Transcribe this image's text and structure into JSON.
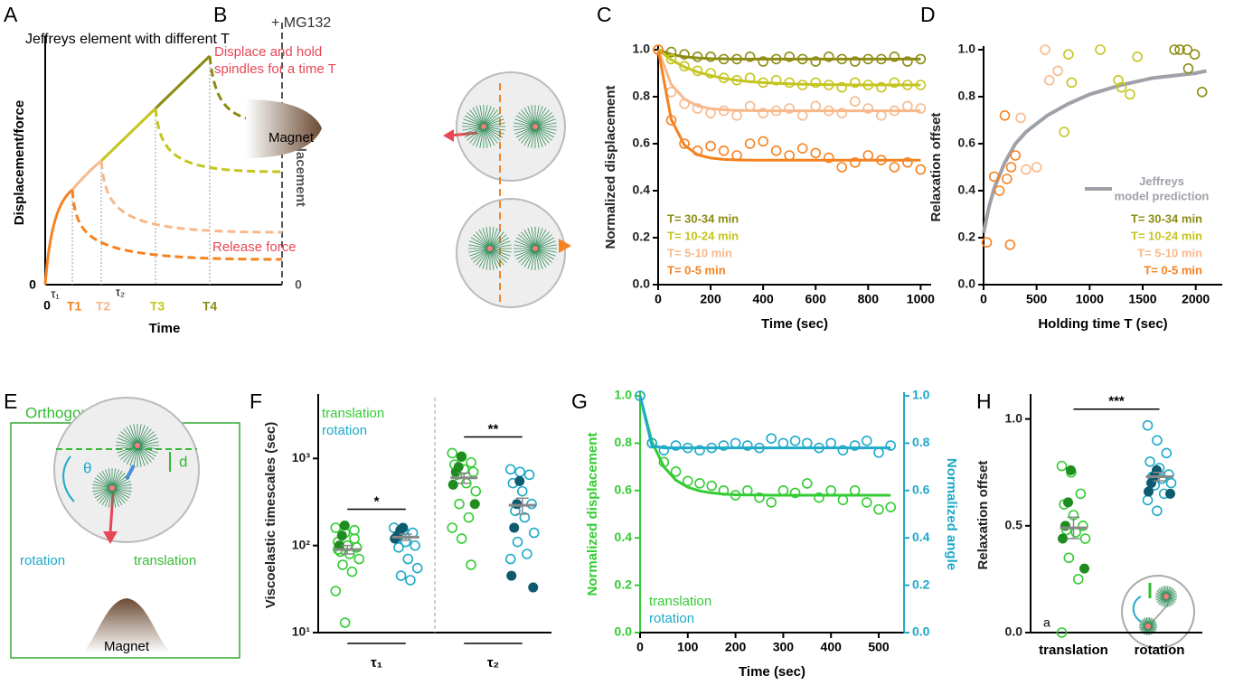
{
  "panel_labels": [
    "A",
    "B",
    "C",
    "D",
    "E",
    "F",
    "G",
    "H"
  ],
  "panel_a": {
    "title": "Jeffreys element with different T",
    "y_label": "Displacement/force",
    "y2_label": "Displacement",
    "x_label": "Time",
    "y_zero": "0",
    "x_zero": "0",
    "y2_zero": "0",
    "tau1": "τ₁",
    "tau2": "τ₂",
    "times": [
      "T1",
      "T2",
      "T3",
      "T4"
    ]
  },
  "panel_b": {
    "treatment": "+ MG132",
    "step1": "Displace and hold spindles for a time T",
    "magnet": "Magnet",
    "step2": "Release force"
  },
  "panel_e": {
    "title": "Orthogonal",
    "angle": "θ",
    "distance": "d",
    "rotation": "rotation",
    "translation": "translation",
    "magnet": "Magnet"
  },
  "chart_data": [
    {
      "type": "scatter",
      "x_label": "Time (sec)",
      "y_label": "Normalized displacement",
      "legend": "lower left",
      "x": [
        0,
        50,
        100,
        150,
        200,
        250,
        300,
        350,
        400,
        450,
        500,
        550,
        600,
        650,
        700,
        750,
        800,
        850,
        900,
        950,
        1000
      ],
      "xlim": [
        0,
        1040
      ],
      "ylim": [
        0,
        1
      ],
      "xticks": [
        0,
        200,
        400,
        600,
        800,
        1000
      ],
      "yticks": [
        {
          "value": 0,
          "label": "0.0"
        },
        {
          "value": 0.2,
          "label": "0.2"
        },
        {
          "value": 0.4,
          "label": "0.4"
        },
        {
          "value": 0.6,
          "label": "0.6"
        },
        {
          "value": 0.8,
          "label": "0.8"
        },
        {
          "value": 1,
          "label": "1.0"
        }
      ],
      "series": [
        {
          "name": "T= 30-34 min",
          "color": "#8c8c14",
          "values": [
            1.0,
            0.99,
            0.98,
            0.97,
            0.97,
            0.96,
            0.96,
            0.97,
            0.95,
            0.96,
            0.97,
            0.96,
            0.95,
            0.97,
            0.96,
            0.95,
            0.96,
            0.96,
            0.97,
            0.95,
            0.96
          ],
          "fit": [
            1.0,
            0.98,
            0.97,
            0.965,
            0.962,
            0.961,
            0.96,
            0.96,
            0.96,
            0.96,
            0.96,
            0.96,
            0.96,
            0.96,
            0.96,
            0.96,
            0.96,
            0.96,
            0.96,
            0.96,
            0.96
          ]
        },
        {
          "name": "T= 10-24 min",
          "color": "#c5c520",
          "values": [
            1.0,
            0.96,
            0.93,
            0.91,
            0.9,
            0.88,
            0.87,
            0.88,
            0.86,
            0.87,
            0.86,
            0.85,
            0.86,
            0.85,
            0.84,
            0.86,
            0.85,
            0.84,
            0.86,
            0.85,
            0.85
          ],
          "fit": [
            1.0,
            0.957,
            0.927,
            0.905,
            0.89,
            0.878,
            0.87,
            0.864,
            0.86,
            0.857,
            0.855,
            0.853,
            0.852,
            0.851,
            0.851,
            0.85,
            0.85,
            0.85,
            0.85,
            0.85,
            0.85
          ]
        },
        {
          "name": "T= 5-10 min",
          "color": "#f7b98b",
          "values": [
            1.0,
            0.82,
            0.77,
            0.75,
            0.73,
            0.74,
            0.72,
            0.76,
            0.73,
            0.74,
            0.75,
            0.72,
            0.76,
            0.74,
            0.73,
            0.78,
            0.75,
            0.72,
            0.74,
            0.76,
            0.75
          ],
          "fit": [
            1.0,
            0.852,
            0.79,
            0.761,
            0.749,
            0.744,
            0.742,
            0.741,
            0.74,
            0.74,
            0.74,
            0.74,
            0.74,
            0.74,
            0.74,
            0.74,
            0.74,
            0.74,
            0.74,
            0.74,
            0.74
          ]
        },
        {
          "name": "T= 0-5 min",
          "color": "#f58220",
          "values": [
            1.0,
            0.7,
            0.6,
            0.57,
            0.59,
            0.57,
            0.55,
            0.6,
            0.61,
            0.57,
            0.55,
            0.58,
            0.56,
            0.54,
            0.5,
            0.52,
            0.55,
            0.53,
            0.5,
            0.52,
            0.49
          ],
          "fit": [
            1.0,
            0.703,
            0.594,
            0.553,
            0.539,
            0.533,
            0.531,
            0.53,
            0.53,
            0.53,
            0.53,
            0.53,
            0.53,
            0.53,
            0.53,
            0.53,
            0.53,
            0.53,
            0.53,
            0.53,
            0.53
          ]
        }
      ]
    },
    {
      "type": "scatter",
      "x_label": "Holding time T (sec)",
      "y_label": "Relaxation offset",
      "legend": "lower right",
      "xlim": [
        0,
        2250
      ],
      "ylim": [
        0,
        1
      ],
      "xticks": [
        0,
        500,
        1000,
        1500,
        2000
      ],
      "yticks": [
        {
          "value": 0,
          "label": "0.0"
        },
        {
          "value": 0.2,
          "label": "0.2"
        },
        {
          "value": 0.4,
          "label": "0.4"
        },
        {
          "value": 0.6,
          "label": "0.6"
        },
        {
          "value": 0.8,
          "label": "0.8"
        },
        {
          "value": 1,
          "label": "1.0"
        }
      ],
      "series": [
        {
          "name": "Jeffreys model prediction",
          "color": "#a0a0a8",
          "style": "line",
          "x": [
            0,
            50,
            100,
            200,
            300,
            400,
            600,
            800,
            1000,
            1300,
            1600,
            2000,
            2100
          ],
          "values": [
            0.22,
            0.33,
            0.41,
            0.52,
            0.6,
            0.65,
            0.72,
            0.77,
            0.81,
            0.85,
            0.88,
            0.9,
            0.91
          ]
        },
        {
          "name": "T= 30-34 min",
          "color": "#8c8c14",
          "x": [
            1800,
            1850,
            1920,
            1930,
            1990,
            2060
          ],
          "values": [
            1.0,
            1.0,
            1.0,
            0.92,
            0.98,
            0.82
          ]
        },
        {
          "name": "T= 10-24 min",
          "color": "#c5c520",
          "x": [
            760,
            800,
            830,
            1100,
            1270,
            1300,
            1380,
            1450
          ],
          "values": [
            0.65,
            0.98,
            0.86,
            1.0,
            0.87,
            0.84,
            0.81,
            0.97
          ]
        },
        {
          "name": "T= 5-10 min",
          "color": "#f7b98b",
          "x": [
            350,
            400,
            500,
            580,
            620,
            700
          ],
          "values": [
            0.71,
            0.49,
            0.5,
            1.0,
            0.87,
            0.91
          ]
        },
        {
          "name": "T= 0-5 min",
          "color": "#f58220",
          "x": [
            30,
            100,
            150,
            200,
            220,
            250,
            260,
            300
          ],
          "values": [
            0.18,
            0.46,
            0.4,
            0.72,
            0.45,
            0.17,
            0.5,
            0.55
          ]
        }
      ]
    },
    {
      "type": "strip",
      "log": true,
      "y_label": "Viscoelastic timescales (sec)",
      "legend": "upper left",
      "ylim": [
        10,
        5000
      ],
      "yticks": [
        {
          "value": 10,
          "label": "10¹"
        },
        {
          "value": 100,
          "label": "10²"
        },
        {
          "value": 1000,
          "label": "10³"
        }
      ],
      "categories": [
        "τ₁",
        "τ₂"
      ],
      "significance": [
        "*",
        "**"
      ],
      "series": [
        {
          "name": "translation",
          "color": "#33cc33",
          "filled_color": "#1f8c1f",
          "values": [
            [
              160,
              140,
              120,
              110,
              100,
              95,
              85,
              80,
              70,
              60,
              50,
              30,
              13,
              150,
              90
            ],
            [
              1150,
              1050,
              900,
              850,
              750,
              700,
              650,
              520,
              420,
              300,
              210,
              160,
              120,
              60
            ]
          ],
          "filled": [
            [
              170,
              130,
              100
            ],
            [
              1050,
              800,
              700,
              500,
              300
            ]
          ],
          "mean": [
            90,
            600
          ],
          "sem": [
            10,
            80
          ]
        },
        {
          "name": "rotation",
          "color": "#1eaac8",
          "filled_color": "#0e5a6e",
          "values": [
            [
              160,
              150,
              140,
              120,
              110,
              100,
              95,
              70,
              55,
              45,
              40
            ],
            [
              750,
              700,
              650,
              520,
              420,
              300,
              250,
              210,
              140,
              110,
              80,
              70
            ]
          ],
          "filled": [
            [
              160,
              150,
              130,
              120
            ],
            [
              550,
              300,
              160,
              45,
              33
            ]
          ],
          "mean": [
            125,
            290
          ],
          "sem": [
            10,
            60
          ]
        }
      ]
    },
    {
      "type": "scatter",
      "x_label": "Time (sec)",
      "y_label": "Normalized displacement",
      "y2_label": "Normalized angle",
      "legend": "lower left",
      "x": [
        0,
        25,
        50,
        75,
        100,
        125,
        150,
        175,
        200,
        225,
        250,
        275,
        300,
        325,
        350,
        375,
        400,
        425,
        450,
        475,
        500,
        525
      ],
      "xlim": [
        0,
        553
      ],
      "ylim": [
        0,
        1
      ],
      "y2lim": [
        0,
        1
      ],
      "xticks": [
        0,
        100,
        200,
        300,
        400,
        500
      ],
      "yticks": [
        {
          "value": 0,
          "label": "0.0"
        },
        {
          "value": 0.2,
          "label": "0.2"
        },
        {
          "value": 0.4,
          "label": "0.4"
        },
        {
          "value": 0.6,
          "label": "0.6"
        },
        {
          "value": 0.8,
          "label": "0.8"
        },
        {
          "value": 1,
          "label": "1.0"
        }
      ],
      "y2ticks": [
        {
          "value": 0,
          "label": "0.0"
        },
        {
          "value": 0.2,
          "label": "0.2"
        },
        {
          "value": 0.4,
          "label": "0.4"
        },
        {
          "value": 0.6,
          "label": "0.6"
        },
        {
          "value": 0.8,
          "label": "0.8"
        },
        {
          "value": 1,
          "label": "1.0"
        }
      ],
      "series": [
        {
          "name": "translation",
          "color": "#33cc33",
          "values": [
            1.0,
            0.8,
            0.72,
            0.68,
            0.64,
            0.63,
            0.62,
            0.6,
            0.58,
            0.6,
            0.57,
            0.55,
            0.6,
            0.59,
            0.63,
            0.57,
            0.6,
            0.56,
            0.6,
            0.55,
            0.52,
            0.53
          ],
          "fit": [
            1.0,
            0.805,
            0.7,
            0.644,
            0.614,
            0.598,
            0.59,
            0.585,
            0.582,
            0.581,
            0.581,
            0.58,
            0.58,
            0.58,
            0.58,
            0.58,
            0.58,
            0.58,
            0.58,
            0.58,
            0.58,
            0.58
          ]
        },
        {
          "name": "rotation",
          "color": "#1eaac8",
          "axis": "y2",
          "values": [
            1.0,
            0.8,
            0.77,
            0.79,
            0.78,
            0.77,
            0.78,
            0.79,
            0.8,
            0.79,
            0.78,
            0.82,
            0.8,
            0.81,
            0.8,
            0.78,
            0.8,
            0.77,
            0.79,
            0.81,
            0.76,
            0.79
          ],
          "fit": [
            1.0,
            0.789,
            0.78,
            0.78,
            0.78,
            0.78,
            0.78,
            0.78,
            0.78,
            0.78,
            0.78,
            0.78,
            0.78,
            0.78,
            0.78,
            0.78,
            0.78,
            0.78,
            0.78,
            0.78,
            0.78,
            0.78
          ]
        }
      ]
    },
    {
      "type": "strip",
      "y_label": "Relaxation offset",
      "annotation": "a",
      "ylim": [
        0,
        1.1
      ],
      "yticks": [
        {
          "value": 0,
          "label": "0.0"
        },
        {
          "value": 0.5,
          "label": "0.5"
        },
        {
          "value": 1,
          "label": "1.0"
        }
      ],
      "significance": [
        "***"
      ],
      "series": [
        {
          "name": "translation",
          "color": "#33cc33",
          "filled_color": "#1f8c1f",
          "values": [
            [
              0.78,
              0.75,
              0.65,
              0.6,
              0.55,
              0.5,
              0.48,
              0.47,
              0.44,
              0.35,
              0.25,
              0.0
            ]
          ],
          "filled": [
            [
              0.76,
              0.61,
              0.5,
              0.44,
              0.3
            ]
          ],
          "mean": [
            0.49
          ],
          "sem": [
            0.05
          ]
        },
        {
          "name": "rotation",
          "color": "#1eaac8",
          "filled_color": "#0e5a6e",
          "values": [
            [
              0.97,
              0.9,
              0.84,
              0.8,
              0.77,
              0.74,
              0.73,
              0.72,
              0.7,
              0.69,
              0.65,
              0.62,
              0.57
            ]
          ],
          "filled": [
            [
              0.76,
              0.73,
              0.7,
              0.66,
              0.65
            ]
          ],
          "mean": [
            0.73
          ],
          "sem": [
            0.02
          ]
        }
      ]
    }
  ]
}
